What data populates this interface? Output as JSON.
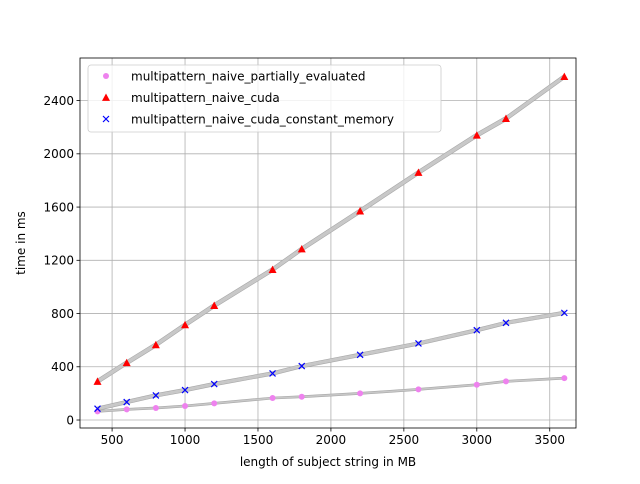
{
  "chart_data": {
    "type": "scatter",
    "title": "",
    "xlabel": "length of subject string in MB",
    "ylabel": "time in ms",
    "xlim": [
      280,
      3680
    ],
    "ylim": [
      -60,
      2720
    ],
    "x_ticks": [
      500,
      1000,
      1500,
      2000,
      2500,
      3000,
      3500
    ],
    "y_ticks": [
      0,
      400,
      800,
      1200,
      1600,
      2000,
      2400
    ],
    "x_tick_labels": [
      "500",
      "1000",
      "1500",
      "2000",
      "2500",
      "3000",
      "3500"
    ],
    "y_tick_labels": [
      "0",
      "400",
      "800",
      "1200",
      "1600",
      "2000",
      "2400"
    ],
    "grid": true,
    "legend_position": "top-left",
    "x": [
      400,
      600,
      800,
      1000,
      1200,
      1600,
      1800,
      2200,
      2600,
      3000,
      3200,
      3600
    ],
    "series": [
      {
        "name": "multipattern_naive_partially_evaluated",
        "marker": "circle",
        "color": "#ee82ee",
        "values": [
          65,
          80,
          90,
          105,
          125,
          165,
          175,
          200,
          230,
          265,
          290,
          315
        ],
        "band_width": 16
      },
      {
        "name": "multipattern_naive_cuda",
        "marker": "triangle",
        "color": "#ff0000",
        "values": [
          290,
          430,
          565,
          715,
          860,
          1130,
          1285,
          1570,
          1860,
          2140,
          2265,
          2580
        ],
        "band_width": 36
      },
      {
        "name": "multipattern_naive_cuda_constant_memory",
        "marker": "x",
        "color": "#0000ff",
        "values": [
          85,
          135,
          185,
          225,
          270,
          350,
          405,
          490,
          575,
          675,
          730,
          805
        ],
        "band_width": 28
      }
    ],
    "band_color": "#c8c8c8"
  }
}
